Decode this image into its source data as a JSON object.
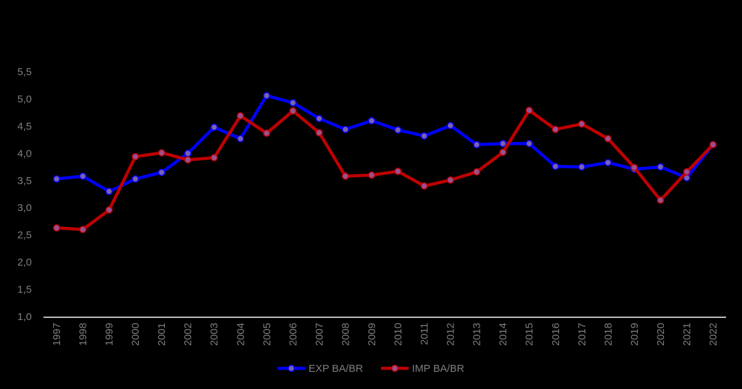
{
  "chart_data": {
    "type": "line",
    "title": "",
    "xlabel": "",
    "ylabel": "",
    "ylim": [
      1.0,
      5.5
    ],
    "y_ticks": [
      "1,0",
      "1,5",
      "2,0",
      "2,5",
      "3,0",
      "3,5",
      "4,0",
      "4,5",
      "5,0",
      "5,5"
    ],
    "y_tick_values": [
      1.0,
      1.5,
      2.0,
      2.5,
      3.0,
      3.5,
      4.0,
      4.5,
      5.0,
      5.5
    ],
    "categories": [
      "1997",
      "1998",
      "1999",
      "2000",
      "2001",
      "2002",
      "2003",
      "2004",
      "2005",
      "2006",
      "2007",
      "2008",
      "2009",
      "2010",
      "2011",
      "2012",
      "2013",
      "2014",
      "2015",
      "2016",
      "2017",
      "2018",
      "2019",
      "2020",
      "2021",
      "2022"
    ],
    "grid": false,
    "legend_position": "bottom",
    "series": [
      {
        "name": "EXP BA/BR",
        "color": "#0000ff",
        "marker_fill": "#7b5fb0",
        "values": [
          3.53,
          3.58,
          3.3,
          3.53,
          3.65,
          4.0,
          4.48,
          4.27,
          5.06,
          4.93,
          4.64,
          4.44,
          4.6,
          4.43,
          4.32,
          4.51,
          4.16,
          4.18,
          4.18,
          3.76,
          3.75,
          3.83,
          3.71,
          3.75,
          3.55,
          4.16
        ]
      },
      {
        "name": "IMP BA/BR",
        "color": "#c00000",
        "marker_fill": "#9a4f8e",
        "values": [
          2.63,
          2.6,
          2.96,
          3.94,
          4.01,
          3.88,
          3.92,
          4.69,
          4.37,
          4.78,
          4.38,
          3.58,
          3.6,
          3.67,
          3.4,
          3.51,
          3.66,
          4.02,
          4.79,
          4.44,
          4.54,
          4.27,
          3.74,
          3.14,
          3.66,
          4.16
        ]
      }
    ]
  }
}
